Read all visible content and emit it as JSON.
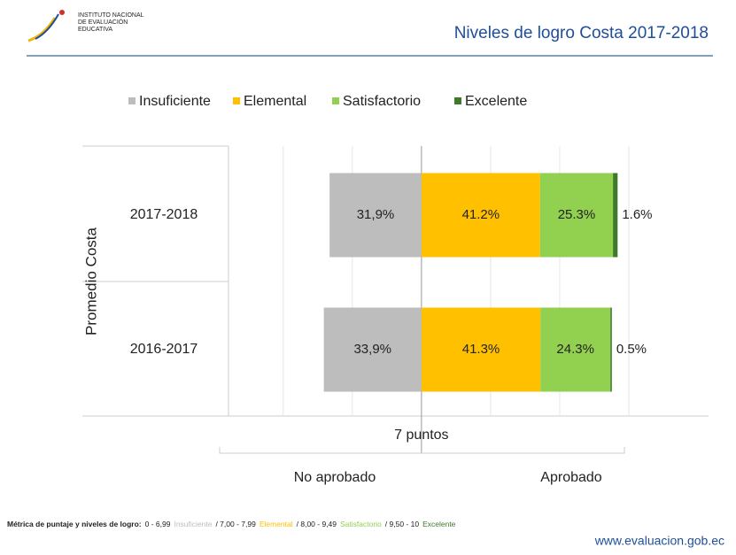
{
  "header": {
    "logo_lines": [
      "INSTITUTO NACIONAL",
      "DE EVALUACIÓN",
      "EDUCATIVA"
    ]
  },
  "chart_data": {
    "type": "diverging_bar",
    "title": "Niveles de logro Costa 2017-2018",
    "group_label": "Promedio Costa",
    "categories": [
      "2017-2018",
      "2016-2017"
    ],
    "series": [
      {
        "name": "Insuficiente",
        "color": "#bdbdbd",
        "values": [
          31.9,
          33.9
        ],
        "value_labels": [
          "31,9%",
          "33,9%"
        ]
      },
      {
        "name": "Elemental",
        "color": "#ffc000",
        "values": [
          41.2,
          41.3
        ],
        "value_labels": [
          "41.2%",
          "41.3%"
        ]
      },
      {
        "name": "Satisfactorio",
        "color": "#92d050",
        "values": [
          25.3,
          24.3
        ],
        "value_labels": [
          "25.3%",
          "24.3%"
        ]
      },
      {
        "name": "Excelente",
        "color": "#3d7b2b",
        "values": [
          1.6,
          0.5
        ],
        "value_labels": [
          "1.6%",
          "0.5%"
        ]
      }
    ],
    "xlim": [
      -67,
      72
    ],
    "xticks": [
      -48,
      -24,
      0,
      24,
      48,
      72
    ],
    "grid": true,
    "legend": "top",
    "threshold_label": "7 puntos",
    "side_labels": [
      "No aprobado",
      "Aprobado"
    ]
  },
  "footer": {
    "metric_label": "Métrica de puntaje y niveles de logro:",
    "ranges": [
      {
        "range": "0 - 6,99",
        "level": "Insuficiente",
        "color": "#bdbdbd"
      },
      {
        "range": "/ 7,00 - 7,99",
        "level": "Elemental",
        "color": "#ffc000"
      },
      {
        "range": "/ 8,00 - 9,49",
        "level": "Satisfactorio",
        "color": "#92d050"
      },
      {
        "range": "/ 9,50 - 10",
        "level": "Excelente",
        "color": "#3d7b2b"
      }
    ],
    "url": "www.evaluacion.gob.ec"
  }
}
